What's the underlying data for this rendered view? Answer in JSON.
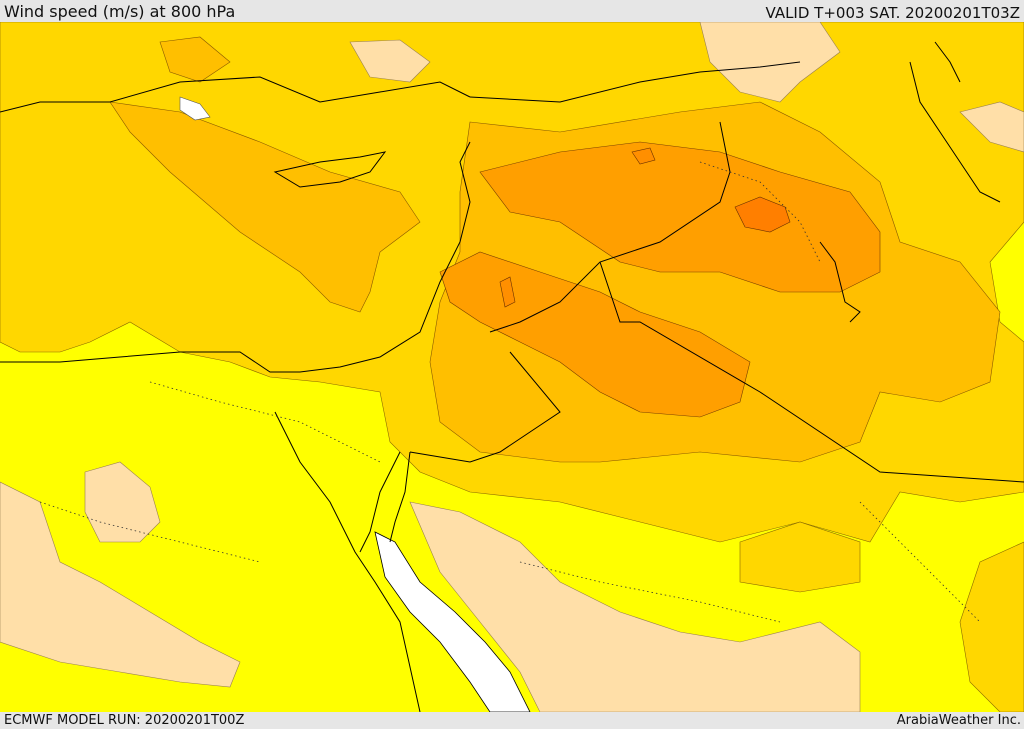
{
  "header": {
    "title": "Wind speed (m/s) at 800 hPa",
    "valid_time": "VALID T+003 SAT. 20200201T03Z"
  },
  "footer": {
    "model_run": "ECMWF MODEL RUN: 20200201T00Z",
    "credit": "ArabiaWeather Inc."
  },
  "palette": {
    "under_5": "#ffdfa8",
    "5_to_10": "#ffff00",
    "10_to_15": "#ffd700",
    "15_to_20": "#ffbf00",
    "20_to_25": "#ff9f00",
    "25_plus": "#ff7f00",
    "sea_gap": "#ffffff",
    "coastline": "#000000"
  }
}
